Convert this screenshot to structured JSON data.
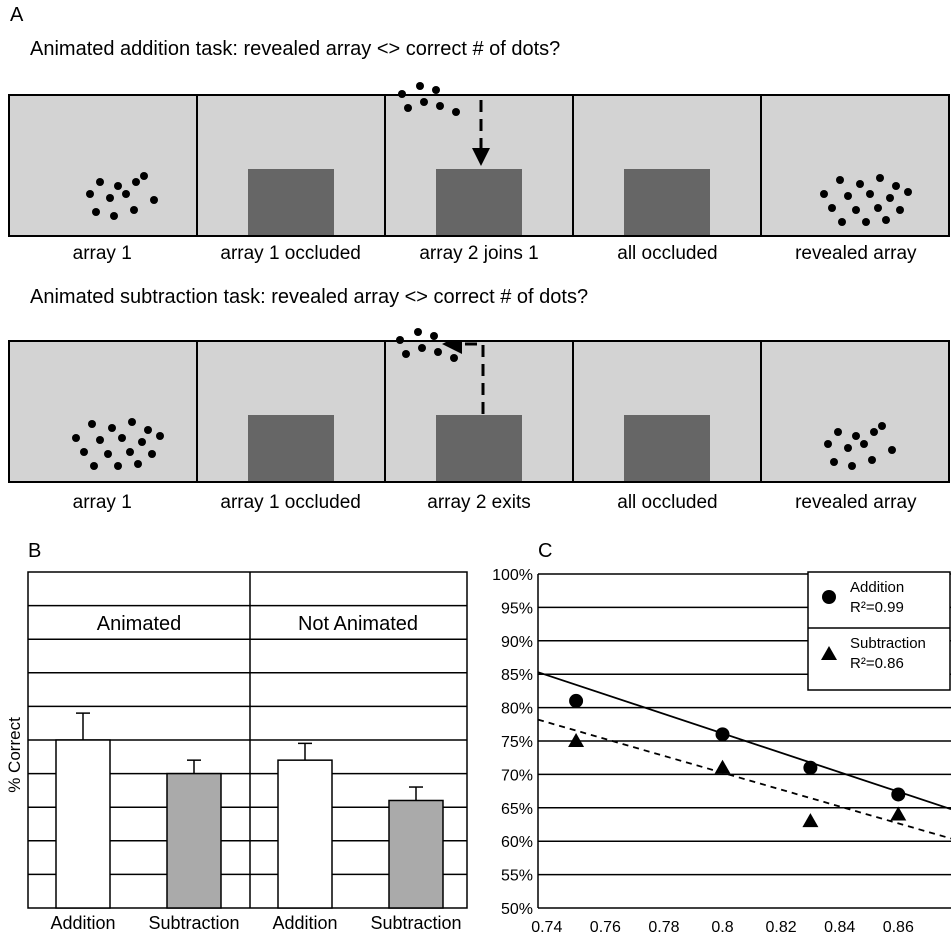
{
  "panel_a": {
    "letter": "A",
    "addition": {
      "title": "Animated addition task: revealed array <> correct # of dots?",
      "frames": [
        "array 1",
        "array 1 occluded",
        "array 2 joins 1",
        "all occluded",
        "revealed array"
      ]
    },
    "subtraction": {
      "title": "Animated subtraction  task: revealed array <> correct # of dots?",
      "frames": [
        "array 1",
        "array 1 occluded",
        "array 2 exits",
        "all occluded",
        "revealed array"
      ]
    },
    "colors": {
      "frame_bg": "#d3d3d3",
      "occluder": "#666666",
      "dot": "#000000"
    }
  },
  "chart_data": [
    {
      "panel_letter": "B",
      "type": "bar",
      "ylabel": "% Correct",
      "group_labels": [
        "Animated",
        "Not Animated"
      ],
      "categories": [
        "Addition",
        "Subtraction",
        "Addition",
        "Subtraction"
      ],
      "values": [
        0.75,
        0.7,
        0.72,
        0.66
      ],
      "errors": [
        0.04,
        0.02,
        0.025,
        0.02
      ],
      "bar_colors": [
        "#ffffff",
        "#aaaaaa",
        "#ffffff",
        "#aaaaaa"
      ],
      "grid": true
    },
    {
      "panel_letter": "C",
      "type": "scatter",
      "xlim": [
        0.737,
        0.878
      ],
      "ylim": [
        50,
        100
      ],
      "xticks": [
        "0.74",
        "0.76",
        "0.78",
        "0.8",
        "0.82",
        "0.84",
        "0.86"
      ],
      "xtick_values": [
        0.74,
        0.76,
        0.78,
        0.8,
        0.82,
        0.84,
        0.86
      ],
      "yticks": [
        "50%",
        "55%",
        "60%",
        "65%",
        "70%",
        "75%",
        "80%",
        "85%",
        "90%",
        "95%",
        "100%"
      ],
      "ytick_values": [
        50,
        55,
        60,
        65,
        70,
        75,
        80,
        85,
        90,
        95,
        100
      ],
      "grid": true,
      "legend_position": "top-right",
      "series": [
        {
          "name": "Addition",
          "r2": "R²=0.99",
          "marker": "circle",
          "line": "solid",
          "x": [
            0.75,
            0.8,
            0.83,
            0.86
          ],
          "y": [
            81,
            76,
            71,
            67
          ],
          "trend": [
            [
              0.737,
              85.3
            ],
            [
              0.878,
              64.8
            ]
          ]
        },
        {
          "name": "Subtraction",
          "r2": "R²=0.86",
          "marker": "triangle",
          "line": "dashed",
          "x": [
            0.75,
            0.8,
            0.83,
            0.86
          ],
          "y": [
            75,
            71,
            63,
            64
          ],
          "trend": [
            [
              0.737,
              78.2
            ],
            [
              0.878,
              60.4
            ]
          ]
        }
      ]
    }
  ]
}
